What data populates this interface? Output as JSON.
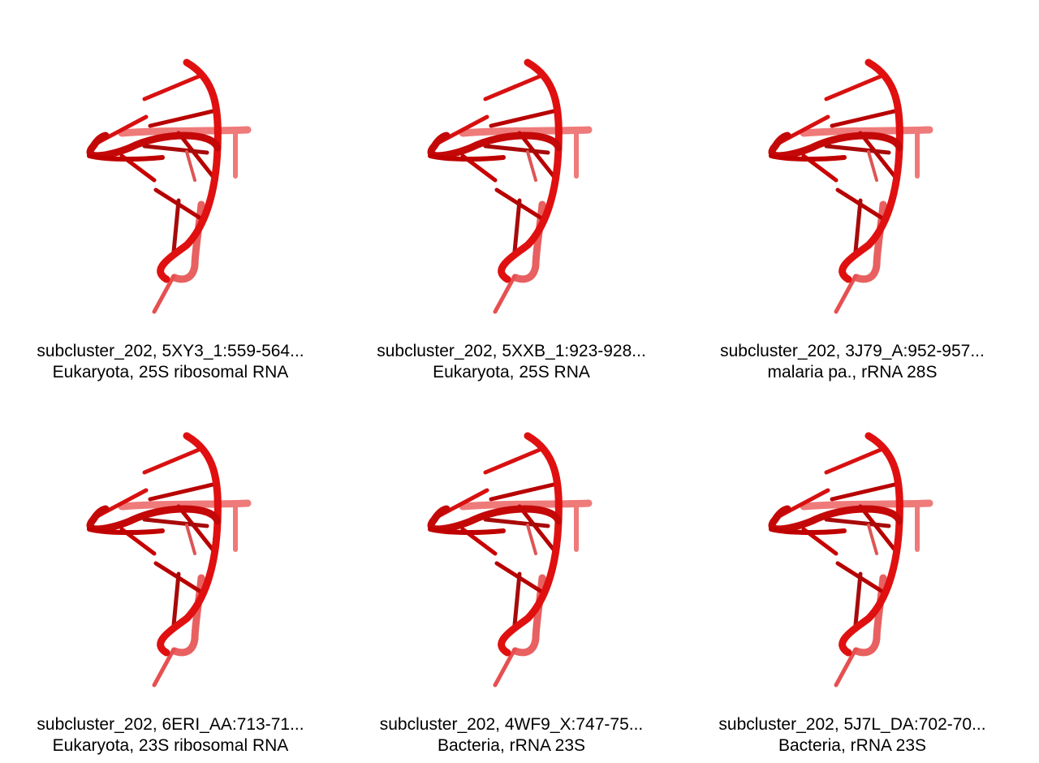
{
  "panels": [
    {
      "line1": "subcluster_202, 5XY3_1:559-564...",
      "line2": "Eukaryota, 25S ribosomal RNA"
    },
    {
      "line1": "subcluster_202, 5XXB_1:923-928...",
      "line2": "Eukaryota, 25S RNA"
    },
    {
      "line1": "subcluster_202, 3J79_A:952-957...",
      "line2": "malaria pa., rRNA 28S"
    },
    {
      "line1": "subcluster_202, 6ERI_AA:713-71...",
      "line2": "Eukaryota, 23S ribosomal RNA"
    },
    {
      "line1": "subcluster_202, 4WF9_X:747-75...",
      "line2": "Bacteria, rRNA 23S"
    },
    {
      "line1": "subcluster_202, 5J7L_DA:702-70...",
      "line2": "Bacteria, rRNA 23S"
    }
  ],
  "colors": {
    "backbone": "#e01010",
    "backbone_dark": "#b00000",
    "base": "#d01010",
    "faded": "#ee6a6a"
  }
}
